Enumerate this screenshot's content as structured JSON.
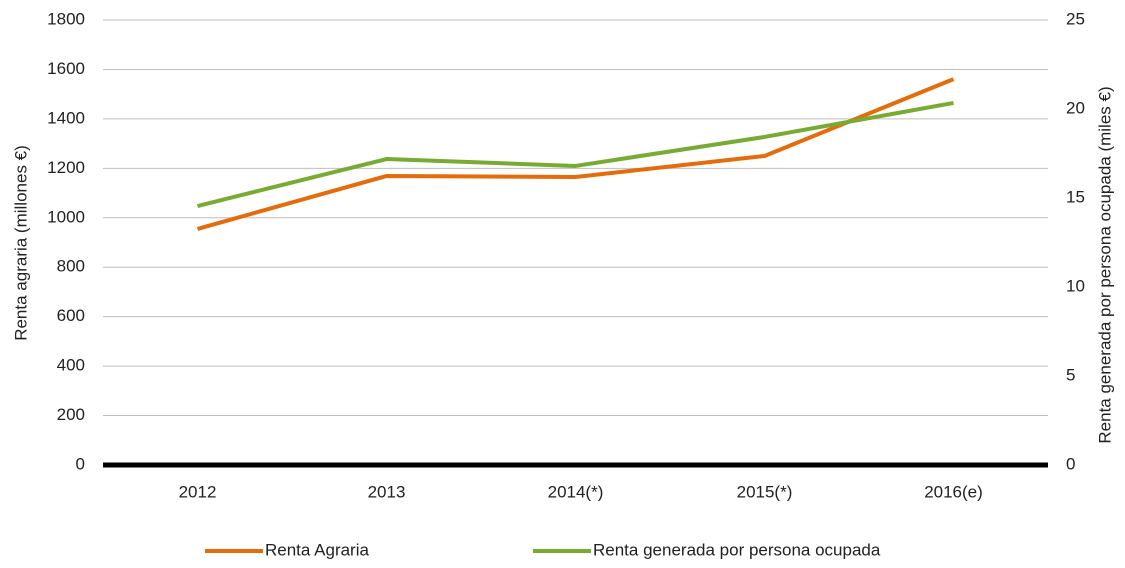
{
  "chart_data": {
    "type": "line",
    "categories": [
      "2012",
      "2013",
      "2014(*)",
      "2015(*)",
      "2016(e)"
    ],
    "series": [
      {
        "name": "Renta Agraria",
        "color": "#e46c0a",
        "values": [
          955,
          1169,
          1165,
          1250,
          1561
        ]
      },
      {
        "name": "Renta generada por persona ocupada",
        "color": "#77ab32",
        "axis": "y2",
        "values": [
          14.55,
          17.19,
          16.8,
          18.43,
          20.34
        ]
      }
    ],
    "ylabel": "Renta agraria (millones €)",
    "y2label": "Renta generada por persona ocupada (miles €)",
    "ylim": [
      0,
      1800
    ],
    "yticks": [
      0,
      200,
      400,
      600,
      800,
      1000,
      1200,
      1400,
      1600,
      1800
    ],
    "y2lim": [
      0,
      25
    ],
    "y2ticks": [
      0,
      5,
      10,
      15,
      20,
      25
    ],
    "grid": true,
    "legend": "bottom"
  }
}
